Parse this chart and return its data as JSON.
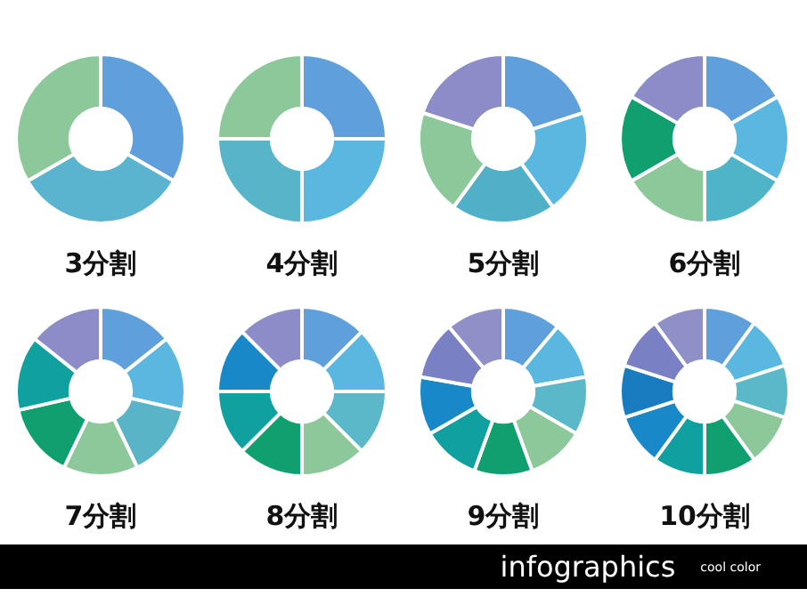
{
  "chart_data": [
    {
      "type": "donut",
      "title": "3分割",
      "categories": [
        null,
        null,
        null
      ],
      "values": [
        33.33,
        33.33,
        33.34
      ],
      "colors": [
        "#5fa0dc",
        "#5ab4d0",
        "#8cc89a"
      ]
    },
    {
      "type": "donut",
      "title": "4分割",
      "categories": [
        null,
        null,
        null,
        null
      ],
      "values": [
        25,
        25,
        25,
        25
      ],
      "colors": [
        "#5fa0dc",
        "#5ab8e0",
        "#58b4c8",
        "#8cc89a"
      ]
    },
    {
      "type": "donut",
      "title": "5分割",
      "categories": [
        null,
        null,
        null,
        null,
        null
      ],
      "values": [
        20,
        20,
        20,
        20,
        20
      ],
      "colors": [
        "#5fa0dc",
        "#5ab8e0",
        "#4fb0c8",
        "#8cc89a",
        "#8c8cc8"
      ]
    },
    {
      "type": "donut",
      "title": "6分割",
      "categories": [
        null,
        null,
        null,
        null,
        null,
        null
      ],
      "values": [
        16.67,
        16.67,
        16.66,
        16.67,
        16.67,
        16.66
      ],
      "colors": [
        "#5fa0dc",
        "#5ab8e0",
        "#4fb4c8",
        "#8cc89a",
        "#10a070",
        "#8c8cc8"
      ]
    },
    {
      "type": "donut",
      "title": "7分割",
      "categories": [
        null,
        null,
        null,
        null,
        null,
        null,
        null
      ],
      "values": [
        14.28,
        14.29,
        14.29,
        14.28,
        14.29,
        14.29,
        14.28
      ],
      "colors": [
        "#5fa0dc",
        "#5ab8e0",
        "#5ab4c8",
        "#8cc89a",
        "#10a070",
        "#10a0a0",
        "#8c8cc8"
      ]
    },
    {
      "type": "donut",
      "title": "8分割",
      "categories": [
        null,
        null,
        null,
        null,
        null,
        null,
        null,
        null
      ],
      "values": [
        12.5,
        12.5,
        12.5,
        12.5,
        12.5,
        12.5,
        12.5,
        12.5
      ],
      "colors": [
        "#5fa0dc",
        "#5ab8e0",
        "#5ab8c8",
        "#8cc89a",
        "#10a070",
        "#10a0a0",
        "#1888c8",
        "#8c8cc8"
      ]
    },
    {
      "type": "donut",
      "title": "9分割",
      "categories": [
        null,
        null,
        null,
        null,
        null,
        null,
        null,
        null,
        null
      ],
      "values": [
        11.11,
        11.11,
        11.11,
        11.11,
        11.12,
        11.11,
        11.11,
        11.11,
        11.11
      ],
      "colors": [
        "#5fa0dc",
        "#5ab8e0",
        "#5ab8c8",
        "#8cc89a",
        "#10a070",
        "#10a0a0",
        "#1888c8",
        "#7a80c4",
        "#9090c8"
      ]
    },
    {
      "type": "donut",
      "title": "10分割",
      "categories": [
        null,
        null,
        null,
        null,
        null,
        null,
        null,
        null,
        null,
        null
      ],
      "values": [
        10,
        10,
        10,
        10,
        10,
        10,
        10,
        10,
        10,
        10
      ],
      "colors": [
        "#5fa0dc",
        "#5ab8e0",
        "#5ab8c8",
        "#8cc89a",
        "#10a070",
        "#10a0a0",
        "#1888c8",
        "#1a7cc0",
        "#7a80c4",
        "#9090c8"
      ]
    },
    {
      "type": "other",
      "title": "infographics",
      "annotations": [
        "cool color"
      ]
    }
  ]
}
